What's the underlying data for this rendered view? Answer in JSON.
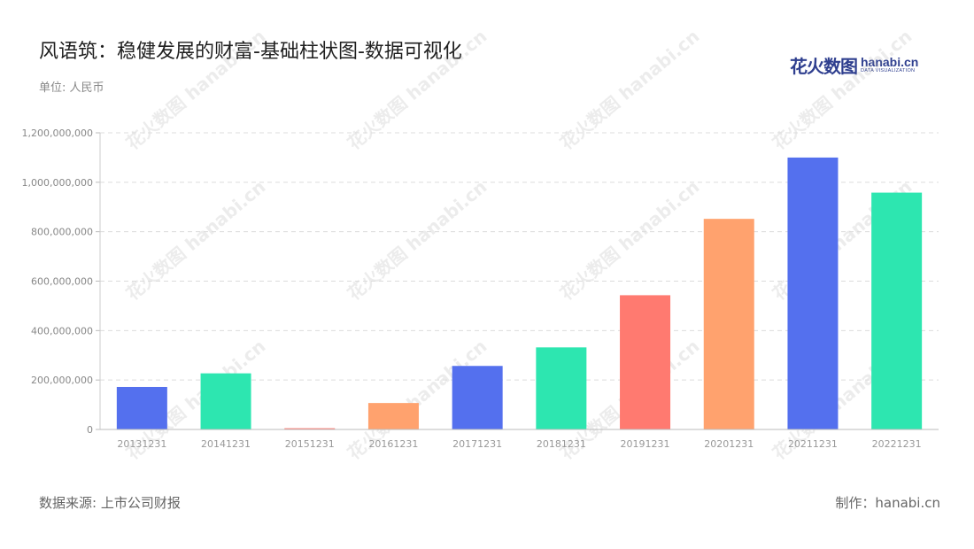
{
  "header": {
    "title": "风语筑：稳健发展的财富-基础柱状图-数据可视化",
    "unit": "单位: 人民币"
  },
  "logo": {
    "cn_text": "花火数图",
    "en_text": "hanabi.cn",
    "sub_text": "DATA VISUALIZATION",
    "brand_color": "#2f3f8f"
  },
  "watermark_text": "花火数图 hanabi.cn",
  "footer": {
    "source": "数据来源: 上市公司财报",
    "credit": "制作：hanabi.cn"
  },
  "chart_data": {
    "type": "bar",
    "title": "风语筑：稳健发展的财富-基础柱状图-数据可视化",
    "xlabel": "",
    "ylabel": "",
    "categories": [
      "20131231",
      "20141231",
      "20151231",
      "20161231",
      "20171231",
      "20181231",
      "20191231",
      "20201231",
      "20211231",
      "20221231"
    ],
    "values": [
      172000000,
      227000000,
      5000000,
      107000000,
      257000000,
      332000000,
      543000000,
      852000000,
      1100000000,
      958000000
    ],
    "colors": [
      "#5470ee",
      "#2de6b0",
      "#ff7a70",
      "#ffa26e",
      "#5470ee",
      "#2de6b0",
      "#ff7a70",
      "#ffa26e",
      "#5470ee",
      "#2de6b0"
    ],
    "ylim": [
      0,
      1200000000
    ],
    "yticks": [
      "0",
      "200,000,000",
      "400,000,000",
      "600,000,000",
      "800,000,000",
      "1,000,000,000",
      "1,200,000,000"
    ],
    "grid": true,
    "legend": "none"
  }
}
